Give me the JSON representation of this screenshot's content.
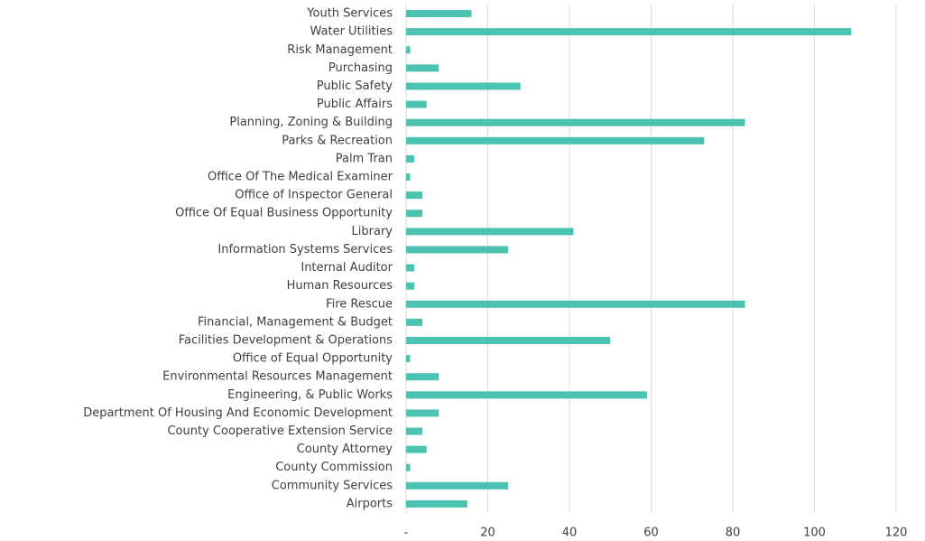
{
  "chart_data": {
    "type": "hbar",
    "categories": [
      "Youth Services",
      "Water Utilities",
      "Risk Management",
      "Purchasing",
      "Public Safety",
      "Public Affairs",
      "Planning, Zoning & Building",
      "Parks & Recreation",
      "Palm Tran",
      "Office Of The Medical Examiner",
      "Office of Inspector General",
      "Office Of Equal Business Opportunity",
      "Library",
      "Information Systems Services",
      "Internal Auditor",
      "Human Resources",
      "Fire Rescue",
      "Financial, Management & Budget",
      "Facilities Development & Operations",
      "Office of Equal Opportunity",
      "Environmental Resources Management",
      "Engineering, & Public Works",
      "Department Of Housing And Economic Development",
      "County Cooperative Extension Service",
      "County Attorney",
      "County Commission",
      "Community Services",
      "Airports"
    ],
    "values": [
      16,
      109,
      1,
      8,
      28,
      5,
      83,
      73,
      2,
      1,
      4,
      4,
      41,
      25,
      2,
      2,
      83,
      4,
      50,
      1,
      8,
      59,
      8,
      4,
      5,
      1,
      25,
      15
    ],
    "color": "#4cc3b1",
    "xlim": [
      0,
      120
    ],
    "xticks": [
      {
        "value": 0,
        "label": "-"
      },
      20,
      40,
      60,
      80,
      100,
      120
    ],
    "grid": true
  }
}
